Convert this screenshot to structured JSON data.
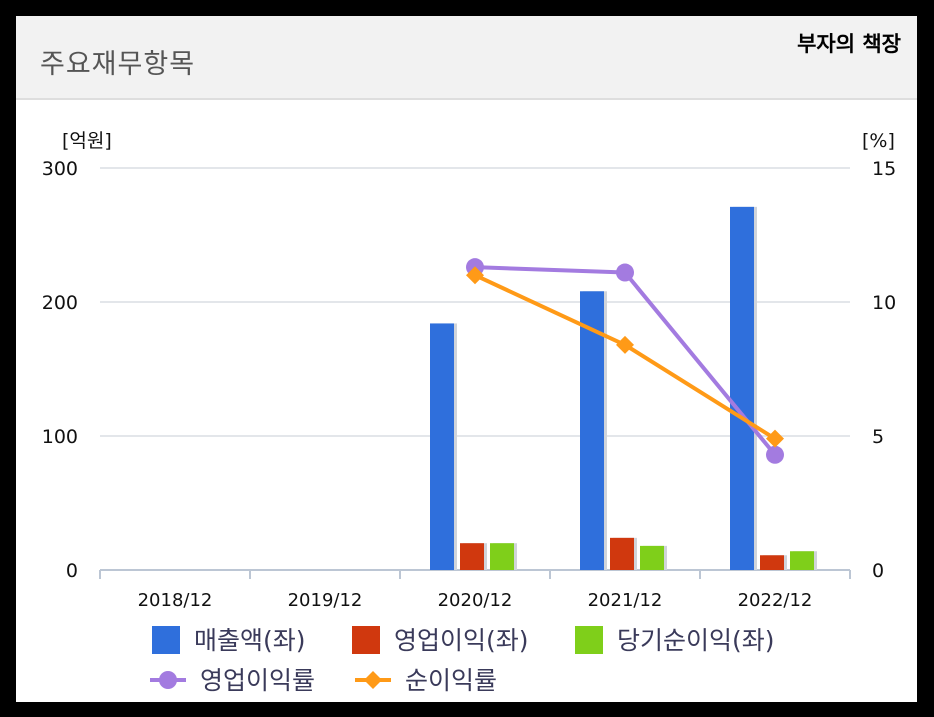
{
  "header": {
    "title": "주요재무항목",
    "brand": "부자의 책장"
  },
  "chart_data": {
    "type": "bar",
    "categories": [
      "2018/12",
      "2019/12",
      "2020/12",
      "2021/12",
      "2022/12"
    ],
    "left_axis": {
      "unit": "[억원]",
      "ylim": [
        0,
        300
      ],
      "ticks": [
        "0",
        "100",
        "200",
        "300"
      ]
    },
    "right_axis": {
      "unit": "[%]",
      "ylim": [
        0,
        15
      ],
      "ticks": [
        "0",
        "5",
        "10",
        "15"
      ]
    },
    "series": [
      {
        "name": "매출액(좌)",
        "type": "bar",
        "axis": "left",
        "color": "#2f6fdc",
        "values": [
          null,
          null,
          184,
          208,
          271
        ]
      },
      {
        "name": "영업이익(좌)",
        "type": "bar",
        "axis": "left",
        "color": "#d0380e",
        "values": [
          null,
          null,
          20,
          24,
          11
        ]
      },
      {
        "name": "당기순이익(좌)",
        "type": "bar",
        "axis": "left",
        "color": "#7fcf1a",
        "values": [
          null,
          null,
          20,
          18,
          14
        ]
      },
      {
        "name": "영업이익률",
        "type": "line",
        "axis": "right",
        "marker": "circle",
        "color": "#a37be0",
        "values": [
          null,
          null,
          11.3,
          11.1,
          4.3
        ]
      },
      {
        "name": "순이익률",
        "type": "line",
        "axis": "right",
        "marker": "diamond",
        "color": "#ff9a17",
        "values": [
          null,
          null,
          11.0,
          8.4,
          4.9
        ]
      }
    ],
    "grid": true,
    "legend_position": "bottom"
  }
}
